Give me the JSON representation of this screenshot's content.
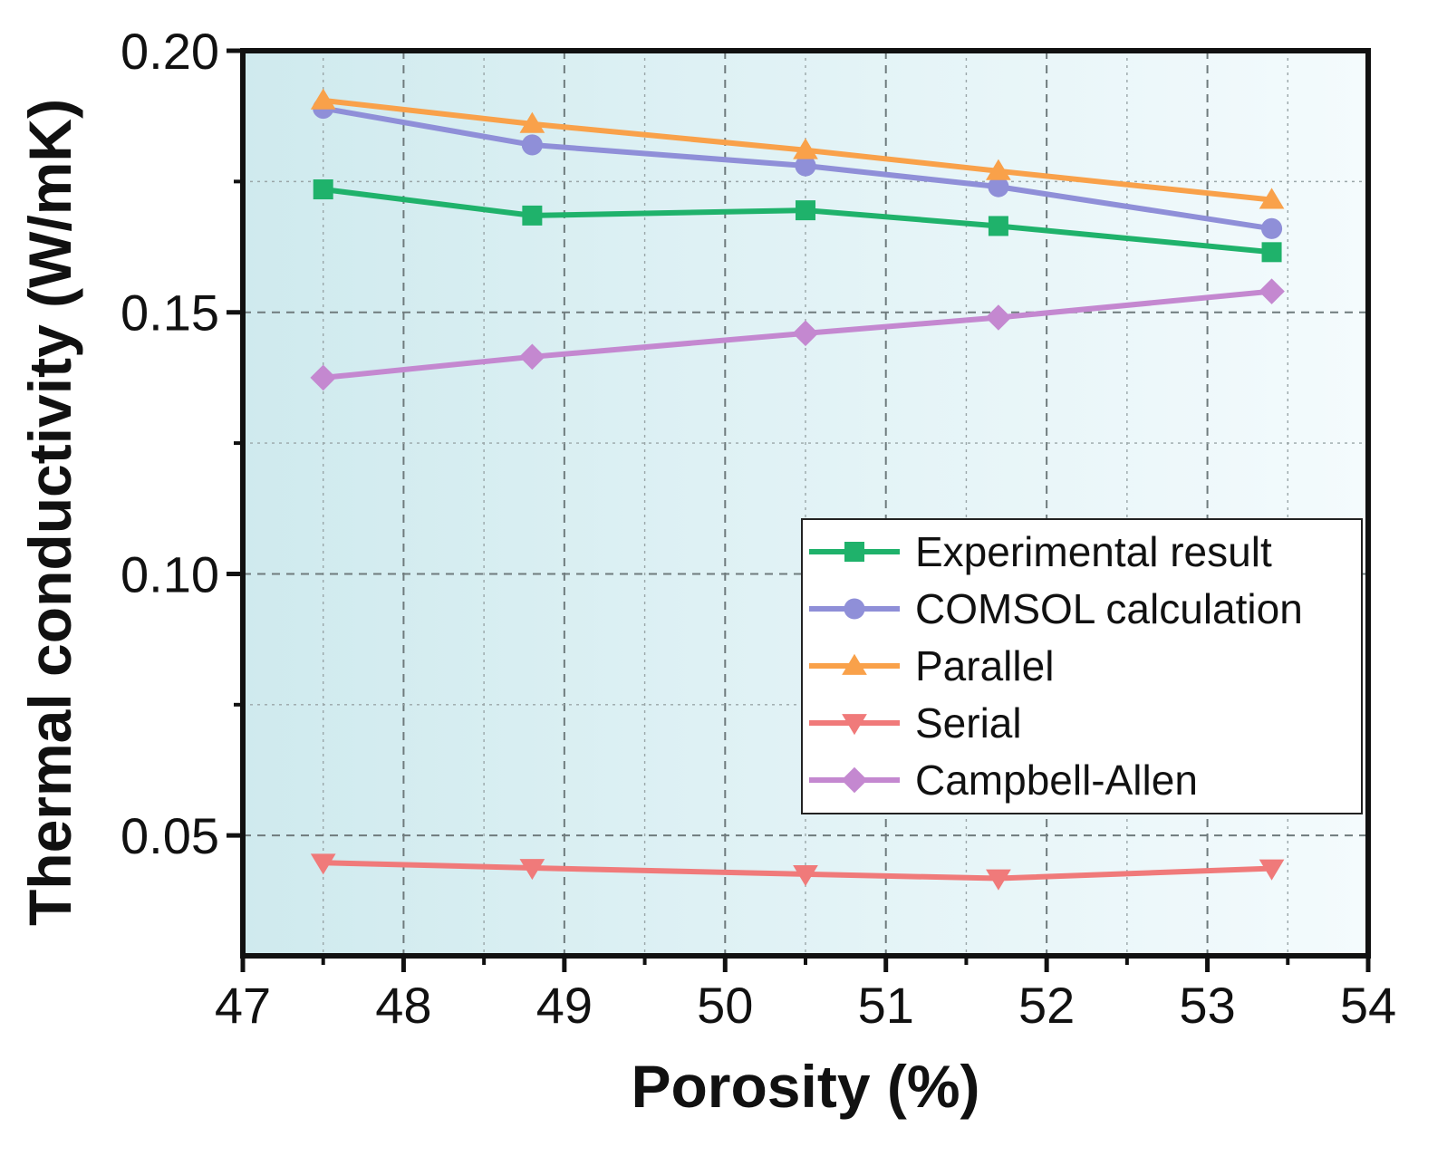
{
  "chart_data": {
    "type": "line",
    "title": "",
    "xlabel": "Porosity (%)",
    "ylabel": "Thermal conductivity (W/mK)",
    "xlim": [
      47,
      54
    ],
    "ylim": [
      0.027,
      0.2
    ],
    "x_ticks": [
      {
        "value": 47,
        "label": "47"
      },
      {
        "value": 48,
        "label": "48"
      },
      {
        "value": 49,
        "label": "49"
      },
      {
        "value": 50,
        "label": "50"
      },
      {
        "value": 51,
        "label": "51"
      },
      {
        "value": 52,
        "label": "52"
      },
      {
        "value": 53,
        "label": "53"
      },
      {
        "value": 54,
        "label": "54"
      }
    ],
    "y_ticks": [
      {
        "value": 0.05,
        "label": "0.05"
      },
      {
        "value": 0.1,
        "label": "0.10"
      },
      {
        "value": 0.15,
        "label": "0.15"
      },
      {
        "value": 0.2,
        "label": "0.20"
      }
    ],
    "y_minor_ticks": [
      0.075,
      0.125,
      0.175
    ],
    "x_minor_ticks": [
      47.5,
      48.5,
      49.5,
      50.5,
      51.5,
      52.5,
      53.5
    ],
    "grid": true,
    "legend_position": "center-right",
    "background_gradient": [
      "#cfeaee",
      "#f4fbfd"
    ],
    "x": [
      47.5,
      48.8,
      50.5,
      51.7,
      53.4
    ],
    "series": [
      {
        "name": "Experimental result",
        "color": "#1fb26b",
        "marker": "square",
        "values": [
          0.1735,
          0.1685,
          0.1695,
          0.1665,
          0.1615
        ]
      },
      {
        "name": "COMSOL calculation",
        "color": "#8f8fd8",
        "marker": "circle",
        "values": [
          0.189,
          0.182,
          0.178,
          0.174,
          0.166
        ]
      },
      {
        "name": "Parallel",
        "color": "#f9a14a",
        "marker": "triangle-up",
        "values": [
          0.1905,
          0.186,
          0.181,
          0.177,
          0.1715
        ]
      },
      {
        "name": "Serial",
        "color": "#f07a7a",
        "marker": "triangle-down",
        "values": [
          0.0448,
          0.0438,
          0.0426,
          0.0418,
          0.0437
        ]
      },
      {
        "name": "Campbell-Allen",
        "color": "#c488d0",
        "marker": "diamond",
        "values": [
          0.1375,
          0.1415,
          0.146,
          0.149,
          0.154
        ]
      }
    ]
  }
}
